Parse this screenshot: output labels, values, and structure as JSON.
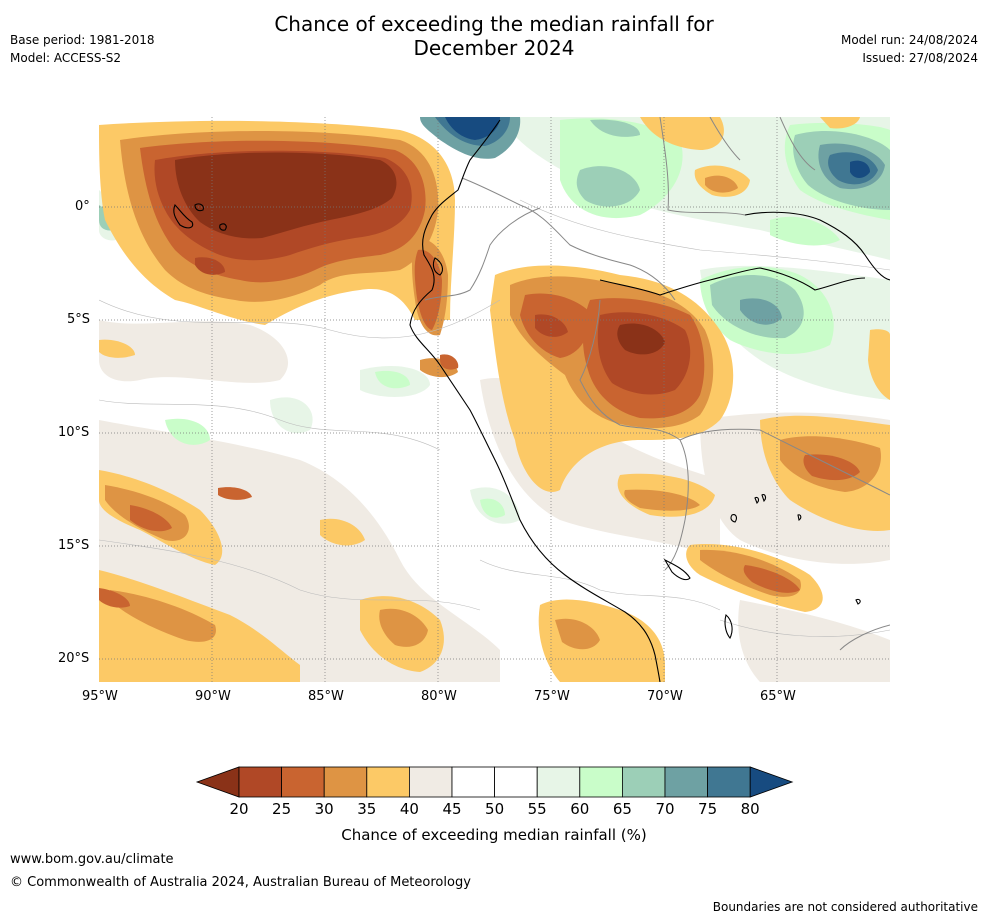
{
  "header": {
    "title_line1": "Chance of exceeding the median rainfall for",
    "title_line2": "December 2024",
    "base_period": "Base period: 1981-2018",
    "model": "Model: ACCESS-S2",
    "model_run": "Model run: 24/08/2024",
    "issued": "Issued: 27/08/2024"
  },
  "map": {
    "lat_ticks": [
      "0°",
      "5°S",
      "10°S",
      "15°S",
      "20°S"
    ],
    "lon_ticks": [
      "95°W",
      "90°W",
      "85°W",
      "80°W",
      "75°W",
      "70°W",
      "65°W"
    ]
  },
  "colorbar": {
    "ticks": [
      "20",
      "25",
      "30",
      "35",
      "40",
      "45",
      "50",
      "55",
      "60",
      "65",
      "70",
      "75",
      "80"
    ],
    "colors": [
      "#8a3218",
      "#b04826",
      "#c96430",
      "#de9444",
      "#fcc966",
      "#f0ebe4",
      "#ffffff",
      "#ffffff",
      "#e7f5e7",
      "#c9fdc9",
      "#9ccfb7",
      "#6ea1a3",
      "#407792",
      "#174b80"
    ],
    "label": "Chance of exceeding median rainfall (%)"
  },
  "footer": {
    "website": "www.bom.gov.au/climate",
    "copyright": "© Commonwealth of Australia 2024, Australian Bureau of Meteorology",
    "disclaimer": "Boundaries are not considered authoritative"
  }
}
